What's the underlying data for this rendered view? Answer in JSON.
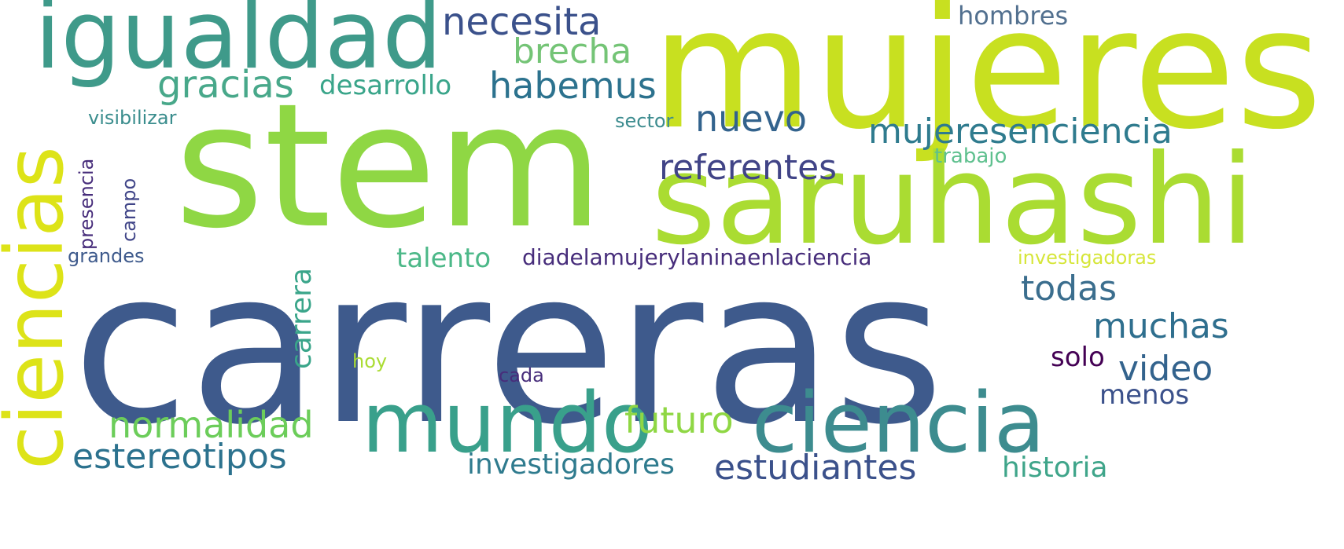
{
  "colors": {
    "background": "#ffffff",
    "dark_purple": "#440154",
    "purple": "#472d7b",
    "indigo": "#3b518b",
    "slate_blue": "#414487",
    "blue": "#3e5a8c",
    "teal_blue": "#33638d",
    "teal": "#2c728e",
    "dark_teal": "#287c8e",
    "sea": "#21918c",
    "green_teal": "#27ad81",
    "green": "#5cc863",
    "light_green": "#8fd744",
    "lime": "#aadc32",
    "yellow_green": "#c8e020",
    "yellow": "#dde318"
  },
  "words": {
    "stem": "stem",
    "carreras": "carreras",
    "mujeres": "mujeres",
    "saruhashi": "saruhashi",
    "igualdad": "igualdad",
    "ciencias": "ciencias",
    "mundo": "mundo",
    "ciencia": "ciencia",
    "necesita": "necesita",
    "brecha": "brecha",
    "gracias": "gracias",
    "habemus": "habemus",
    "desarrollo": "desarrollo",
    "hombres": "hombres",
    "nuevo": "nuevo",
    "mujeresenciencia": "mujeresenciencia",
    "visibilizar": "visibilizar",
    "sector": "sector",
    "referentes": "referentes",
    "trabajo": "trabajo",
    "presencia": "presencia",
    "campo": "campo",
    "grandes": "grandes",
    "talento": "talento",
    "diadelamujer": "diadelamujerylaninaenlaciencia",
    "investigadoras": "investigadoras",
    "carrera": "carrera",
    "todas": "todas",
    "muchas": "muchas",
    "solo": "solo",
    "video": "video",
    "hoy": "hoy",
    "cada": "cada",
    "menos": "menos",
    "futuro": "futuro",
    "normalidad": "normalidad",
    "estereotipos": "estereotipos",
    "investigadores": "investigadores",
    "estudiantes": "estudiantes",
    "historia": "historia"
  }
}
